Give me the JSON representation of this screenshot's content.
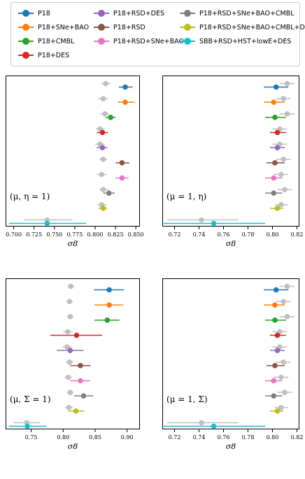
{
  "legend": [
    {
      "label": "P18",
      "color": "#1f77b4"
    },
    {
      "label": "P18+SNe+BAO",
      "color": "#ff7f0e"
    },
    {
      "label": "P18+CMBL",
      "color": "#2ca02c"
    },
    {
      "label": "P18+DES",
      "color": "#d62728"
    },
    {
      "label": "P18+RSD+DES",
      "color": "#9467bd"
    },
    {
      "label": "P18+RSD",
      "color": "#8c564b"
    },
    {
      "label": "P18+RSD+SNe+BAO",
      "color": "#e377c2"
    },
    {
      "label": "P18+RSD+SNe+BAO+CMBL",
      "color": "#7f7f7f"
    },
    {
      "label": "P18+RSD+SNe+BAO+CMBL+DES",
      "color": "#bcbd22"
    },
    {
      "label": "SBB+RSD+HST+lowE+DES",
      "color": "#17becf"
    }
  ],
  "reference_color": "#c0c0c0",
  "chart_data": [
    {
      "type": "scatter",
      "annotation": "(μ, η = 1)",
      "xlabel": "σ8",
      "xlim": [
        0.69,
        0.855
      ],
      "xticks": [
        "0.700",
        "0.725",
        "0.750",
        "0.775",
        "0.800",
        "0.825",
        "0.850"
      ],
      "grid": false,
      "points": [
        {
          "series": "P18",
          "value": 0.837,
          "lo": 0.829,
          "hi": 0.846,
          "ref": 0.813,
          "ref_lo": 0.808,
          "ref_hi": 0.819
        },
        {
          "series": "P18+SNe+BAO",
          "value": 0.837,
          "lo": 0.828,
          "hi": 0.848,
          "ref": 0.81,
          "ref_lo": 0.804,
          "ref_hi": 0.816
        },
        {
          "series": "P18+CMBL",
          "value": 0.819,
          "lo": 0.813,
          "hi": 0.825,
          "ref": 0.812,
          "ref_lo": 0.806,
          "ref_hi": 0.817
        },
        {
          "series": "P18+DES",
          "value": 0.809,
          "lo": 0.802,
          "hi": 0.816,
          "ref": 0.806,
          "ref_lo": 0.801,
          "ref_hi": 0.812
        },
        {
          "series": "P18+RSD+DES",
          "value": 0.809,
          "lo": 0.802,
          "hi": 0.815,
          "ref": 0.806,
          "ref_lo": 0.8,
          "ref_hi": 0.812
        },
        {
          "series": "P18+RSD",
          "value": 0.833,
          "lo": 0.825,
          "hi": 0.842,
          "ref": 0.81,
          "ref_lo": 0.805,
          "ref_hi": 0.815
        },
        {
          "series": "P18+RSD+SNe+BAO",
          "value": 0.833,
          "lo": 0.825,
          "hi": 0.841,
          "ref": 0.808,
          "ref_lo": 0.802,
          "ref_hi": 0.814
        },
        {
          "series": "P18+RSD+SNe+BAO+CMBL",
          "value": 0.817,
          "lo": 0.81,
          "hi": 0.824,
          "ref": 0.81,
          "ref_lo": 0.805,
          "ref_hi": 0.816
        },
        {
          "series": "P18+RSD+SNe+BAO+CMBL+DES",
          "value": 0.81,
          "lo": 0.804,
          "hi": 0.815,
          "ref": 0.808,
          "ref_lo": 0.803,
          "ref_hi": 0.814
        },
        {
          "series": "SBB+RSD+HST+lowE+DES",
          "value": 0.741,
          "lo": 0.694,
          "hi": 0.789,
          "ref": 0.741,
          "ref_lo": 0.713,
          "ref_hi": 0.772
        }
      ]
    },
    {
      "type": "scatter",
      "annotation": "(μ = 1, η)",
      "xlabel": "σ8",
      "xlim": [
        0.71,
        0.822
      ],
      "xticks": [
        "0.72",
        "0.74",
        "0.76",
        "0.78",
        "0.80",
        "0.82"
      ],
      "grid": false,
      "points": [
        {
          "series": "P18",
          "value": 0.803,
          "lo": 0.793,
          "hi": 0.813,
          "ref": 0.812,
          "ref_lo": 0.806,
          "ref_hi": 0.818
        },
        {
          "series": "P18+SNe+BAO",
          "value": 0.801,
          "lo": 0.793,
          "hi": 0.81,
          "ref": 0.809,
          "ref_lo": 0.803,
          "ref_hi": 0.815
        },
        {
          "series": "P18+CMBL",
          "value": 0.802,
          "lo": 0.794,
          "hi": 0.811,
          "ref": 0.812,
          "ref_lo": 0.806,
          "ref_hi": 0.818
        },
        {
          "series": "P18+DES",
          "value": 0.804,
          "lo": 0.798,
          "hi": 0.811,
          "ref": 0.806,
          "ref_lo": 0.8,
          "ref_hi": 0.812
        },
        {
          "series": "P18+RSD+DES",
          "value": 0.804,
          "lo": 0.798,
          "hi": 0.81,
          "ref": 0.806,
          "ref_lo": 0.8,
          "ref_hi": 0.812
        },
        {
          "series": "P18+RSD",
          "value": 0.802,
          "lo": 0.795,
          "hi": 0.81,
          "ref": 0.809,
          "ref_lo": 0.803,
          "ref_hi": 0.815
        },
        {
          "series": "P18+RSD+SNe+BAO",
          "value": 0.801,
          "lo": 0.794,
          "hi": 0.808,
          "ref": 0.807,
          "ref_lo": 0.801,
          "ref_hi": 0.813
        },
        {
          "series": "P18+RSD+SNe+BAO+CMBL",
          "value": 0.801,
          "lo": 0.794,
          "hi": 0.808,
          "ref": 0.81,
          "ref_lo": 0.804,
          "ref_hi": 0.816
        },
        {
          "series": "P18+RSD+SNe+BAO+CMBL+DES",
          "value": 0.804,
          "lo": 0.798,
          "hi": 0.809,
          "ref": 0.807,
          "ref_lo": 0.802,
          "ref_hi": 0.813
        },
        {
          "series": "SBB+RSD+HST+lowE+DES",
          "value": 0.752,
          "lo": 0.711,
          "hi": 0.794,
          "ref": 0.742,
          "ref_lo": 0.714,
          "ref_hi": 0.772
        }
      ]
    },
    {
      "type": "scatter",
      "annotation": "(μ, Σ = 1)",
      "xlabel": "σ8",
      "xlim": [
        0.71,
        0.92
      ],
      "xticks": [
        "0.75",
        "0.80",
        "0.85",
        "0.90"
      ],
      "grid": false,
      "points": [
        {
          "series": "P18",
          "value": 0.872,
          "lo": 0.848,
          "hi": 0.895,
          "ref": 0.812,
          "ref_lo": 0.807,
          "ref_hi": 0.817
        },
        {
          "series": "P18+SNe+BAO",
          "value": 0.872,
          "lo": 0.849,
          "hi": 0.894,
          "ref": 0.81,
          "ref_lo": 0.805,
          "ref_hi": 0.815
        },
        {
          "series": "P18+CMBL",
          "value": 0.869,
          "lo": 0.849,
          "hi": 0.888,
          "ref": 0.811,
          "ref_lo": 0.806,
          "ref_hi": 0.816
        },
        {
          "series": "P18+DES",
          "value": 0.821,
          "lo": 0.78,
          "hi": 0.861,
          "ref": 0.807,
          "ref_lo": 0.8,
          "ref_hi": 0.814
        },
        {
          "series": "P18+RSD+DES",
          "value": 0.811,
          "lo": 0.79,
          "hi": 0.832,
          "ref": 0.806,
          "ref_lo": 0.799,
          "ref_hi": 0.813
        },
        {
          "series": "P18+RSD",
          "value": 0.827,
          "lo": 0.811,
          "hi": 0.843,
          "ref": 0.81,
          "ref_lo": 0.804,
          "ref_hi": 0.816
        },
        {
          "series": "P18+RSD+SNe+BAO",
          "value": 0.827,
          "lo": 0.811,
          "hi": 0.842,
          "ref": 0.808,
          "ref_lo": 0.802,
          "ref_hi": 0.814
        },
        {
          "series": "P18+RSD+SNe+BAO+CMBL",
          "value": 0.832,
          "lo": 0.817,
          "hi": 0.847,
          "ref": 0.811,
          "ref_lo": 0.806,
          "ref_hi": 0.816
        },
        {
          "series": "P18+RSD+SNe+BAO+CMBL+DES",
          "value": 0.82,
          "lo": 0.808,
          "hi": 0.833,
          "ref": 0.809,
          "ref_lo": 0.803,
          "ref_hi": 0.815
        },
        {
          "series": "SBB+RSD+HST+lowE+DES",
          "value": 0.744,
          "lo": 0.715,
          "hi": 0.774,
          "ref": 0.743,
          "ref_lo": 0.722,
          "ref_hi": 0.764
        }
      ]
    },
    {
      "type": "scatter",
      "annotation": "(μ = 1, Σ)",
      "xlabel": "σ8",
      "xlim": [
        0.71,
        0.822
      ],
      "xticks": [
        "0.72",
        "0.74",
        "0.76",
        "0.78",
        "0.80",
        "0.82"
      ],
      "grid": false,
      "points": [
        {
          "series": "P18",
          "value": 0.803,
          "lo": 0.793,
          "hi": 0.813,
          "ref": 0.812,
          "ref_lo": 0.806,
          "ref_hi": 0.818
        },
        {
          "series": "P18+SNe+BAO",
          "value": 0.802,
          "lo": 0.793,
          "hi": 0.81,
          "ref": 0.809,
          "ref_lo": 0.803,
          "ref_hi": 0.815
        },
        {
          "series": "P18+CMBL",
          "value": 0.802,
          "lo": 0.794,
          "hi": 0.811,
          "ref": 0.812,
          "ref_lo": 0.806,
          "ref_hi": 0.818
        },
        {
          "series": "P18+DES",
          "value": 0.804,
          "lo": 0.798,
          "hi": 0.811,
          "ref": 0.806,
          "ref_lo": 0.8,
          "ref_hi": 0.812
        },
        {
          "series": "P18+RSD+DES",
          "value": 0.804,
          "lo": 0.798,
          "hi": 0.81,
          "ref": 0.806,
          "ref_lo": 0.8,
          "ref_hi": 0.812
        },
        {
          "series": "P18+RSD",
          "value": 0.802,
          "lo": 0.795,
          "hi": 0.81,
          "ref": 0.809,
          "ref_lo": 0.803,
          "ref_hi": 0.815
        },
        {
          "series": "P18+RSD+SNe+BAO",
          "value": 0.801,
          "lo": 0.794,
          "hi": 0.808,
          "ref": 0.807,
          "ref_lo": 0.801,
          "ref_hi": 0.813
        },
        {
          "series": "P18+RSD+SNe+BAO+CMBL",
          "value": 0.801,
          "lo": 0.794,
          "hi": 0.808,
          "ref": 0.81,
          "ref_lo": 0.804,
          "ref_hi": 0.816
        },
        {
          "series": "P18+RSD+SNe+BAO+CMBL+DES",
          "value": 0.804,
          "lo": 0.798,
          "hi": 0.809,
          "ref": 0.807,
          "ref_lo": 0.802,
          "ref_hi": 0.813
        },
        {
          "series": "SBB+RSD+HST+lowE+DES",
          "value": 0.752,
          "lo": 0.711,
          "hi": 0.794,
          "ref": 0.742,
          "ref_lo": 0.714,
          "ref_hi": 0.772
        }
      ]
    }
  ]
}
